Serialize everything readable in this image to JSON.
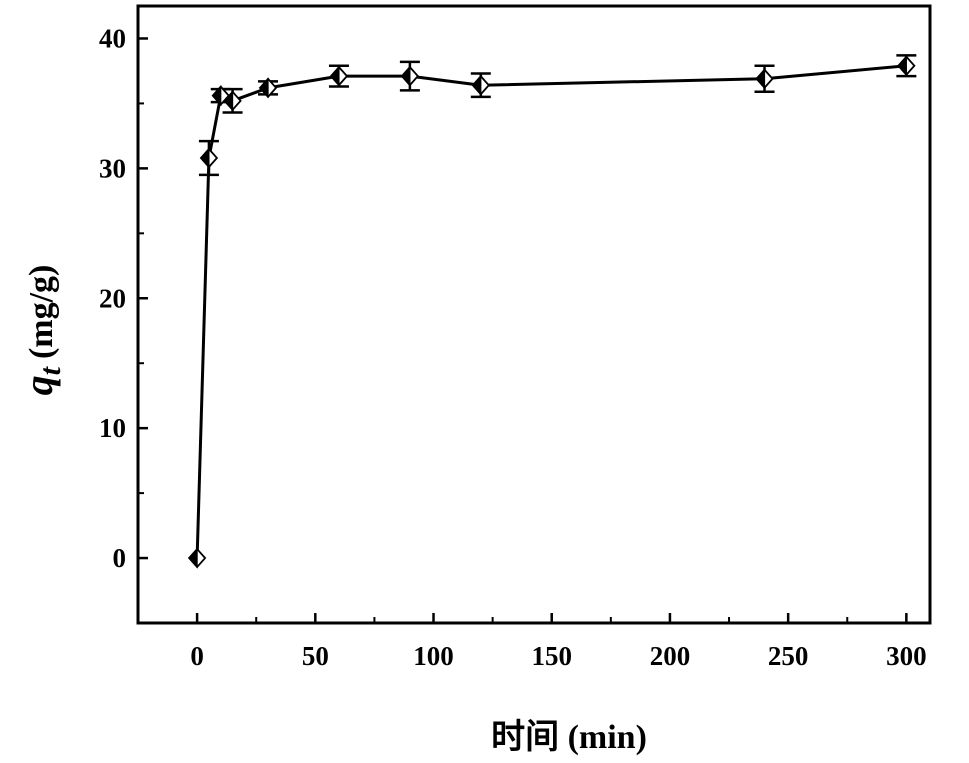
{
  "chart_data": {
    "type": "scatter",
    "title": "",
    "xlabel": "时间 (min)",
    "ylabel_symbol": "q",
    "ylabel_subscript": "t",
    "ylabel_unit": "(mg/g)",
    "xlim": [
      -25,
      310
    ],
    "ylim": [
      -5,
      42.5
    ],
    "xticks": [
      0,
      50,
      100,
      150,
      200,
      250,
      300
    ],
    "yticks": [
      0,
      10,
      20,
      30,
      40
    ],
    "grid": false,
    "series": [
      {
        "marker": "half-filled-diamond",
        "line": true,
        "color": "#000000",
        "points": [
          {
            "x": 0,
            "y": 0,
            "err": 0
          },
          {
            "x": 5,
            "y": 30.8,
            "err": 1.3
          },
          {
            "x": 10,
            "y": 35.6,
            "err": 0.5
          },
          {
            "x": 15,
            "y": 35.2,
            "err": 0.9
          },
          {
            "x": 30,
            "y": 36.2,
            "err": 0.5
          },
          {
            "x": 60,
            "y": 37.1,
            "err": 0.8
          },
          {
            "x": 90,
            "y": 37.1,
            "err": 1.1
          },
          {
            "x": 120,
            "y": 36.4,
            "err": 0.9
          },
          {
            "x": 240,
            "y": 36.9,
            "err": 1.0
          },
          {
            "x": 300,
            "y": 37.9,
            "err": 0.8
          }
        ]
      }
    ]
  }
}
